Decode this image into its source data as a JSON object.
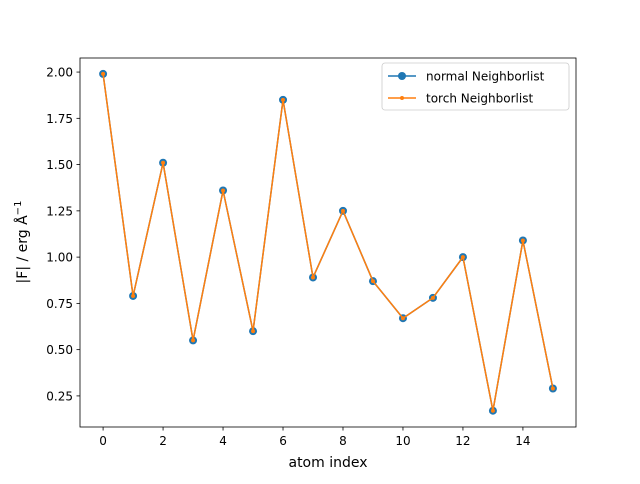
{
  "chart_data": {
    "type": "line",
    "title": "",
    "xlabel": "atom index",
    "ylabel": "|F| / erg Å",
    "ylabel_superscript": "−1",
    "xlim": [
      -0.77,
      15.77
    ],
    "ylim": [
      0.082,
      2.076
    ],
    "xticks": [
      0,
      2,
      4,
      6,
      8,
      10,
      12,
      14
    ],
    "xtick_labels": [
      "0",
      "2",
      "4",
      "6",
      "8",
      "10",
      "12",
      "14"
    ],
    "yticks": [
      0.25,
      0.5,
      0.75,
      1.0,
      1.25,
      1.5,
      1.75,
      2.0
    ],
    "ytick_labels": [
      "0.25",
      "0.50",
      "0.75",
      "1.00",
      "1.25",
      "1.50",
      "1.75",
      "2.00"
    ],
    "grid": false,
    "legend_placement": "top-right",
    "x": [
      0,
      1,
      2,
      3,
      4,
      5,
      6,
      7,
      8,
      9,
      10,
      11,
      12,
      13,
      14,
      15
    ],
    "series": [
      {
        "name": "normal Neighborlist",
        "color": "#1f77b4",
        "marker": "circle",
        "values": [
          1.99,
          0.79,
          1.51,
          0.55,
          1.36,
          0.6,
          1.85,
          0.89,
          1.25,
          0.87,
          0.67,
          0.78,
          1.0,
          0.17,
          1.09,
          0.29
        ]
      },
      {
        "name": "torch Neighborlist",
        "color": "#ff7f0e",
        "marker": "point",
        "values": [
          1.99,
          0.79,
          1.51,
          0.55,
          1.36,
          0.6,
          1.85,
          0.89,
          1.25,
          0.87,
          0.67,
          0.78,
          1.0,
          0.17,
          1.09,
          0.29
        ]
      }
    ]
  }
}
